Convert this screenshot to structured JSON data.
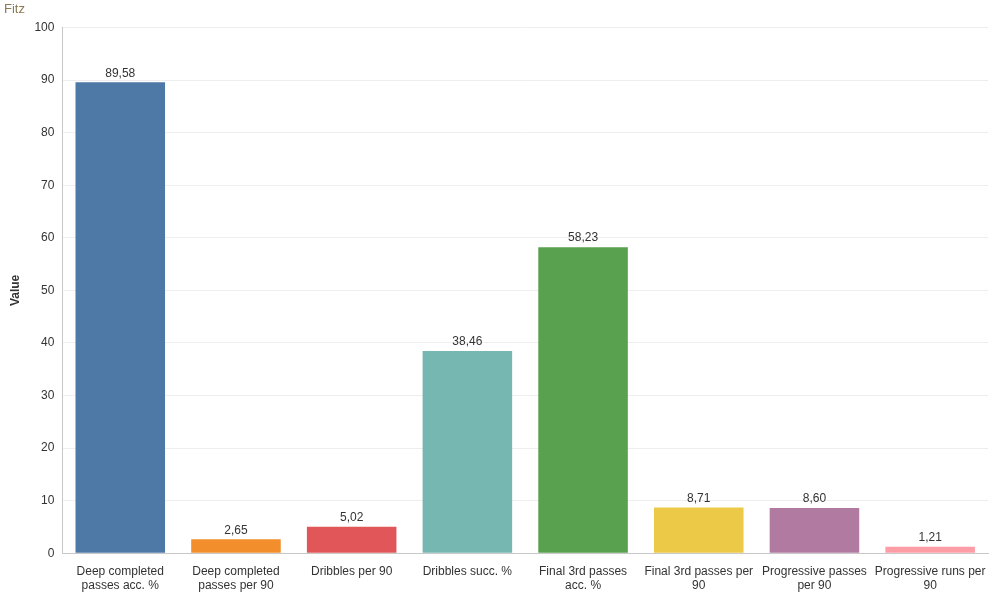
{
  "chart_data": {
    "type": "bar",
    "title": "Fitz",
    "y_label": "Value",
    "categories": [
      "Deep completed passes acc. %",
      "Deep completed passes per 90",
      "Dribbles per 90",
      "Dribbles succ. %",
      "Final 3rd passes acc. %",
      "Final 3rd passes per 90",
      "Progressive passes per 90",
      "Progressive runs per 90"
    ],
    "values": [
      89.58,
      2.65,
      5.02,
      38.46,
      58.23,
      8.71,
      8.6,
      1.21
    ],
    "value_labels": [
      "89,58",
      "2,65",
      "5,02",
      "38,46",
      "58,23",
      "8,71",
      "8,60",
      "1,21"
    ],
    "colors": [
      "#4e79a7",
      "#f28e2b",
      "#e15759",
      "#76b7b2",
      "#59a14f",
      "#edc948",
      "#b07aa1",
      "#ff9da7"
    ],
    "ylim": [
      0,
      100
    ],
    "yticks": [
      0,
      10,
      20,
      30,
      40,
      50,
      60,
      70,
      80,
      90,
      100
    ],
    "grid": true,
    "data_labels": true
  }
}
